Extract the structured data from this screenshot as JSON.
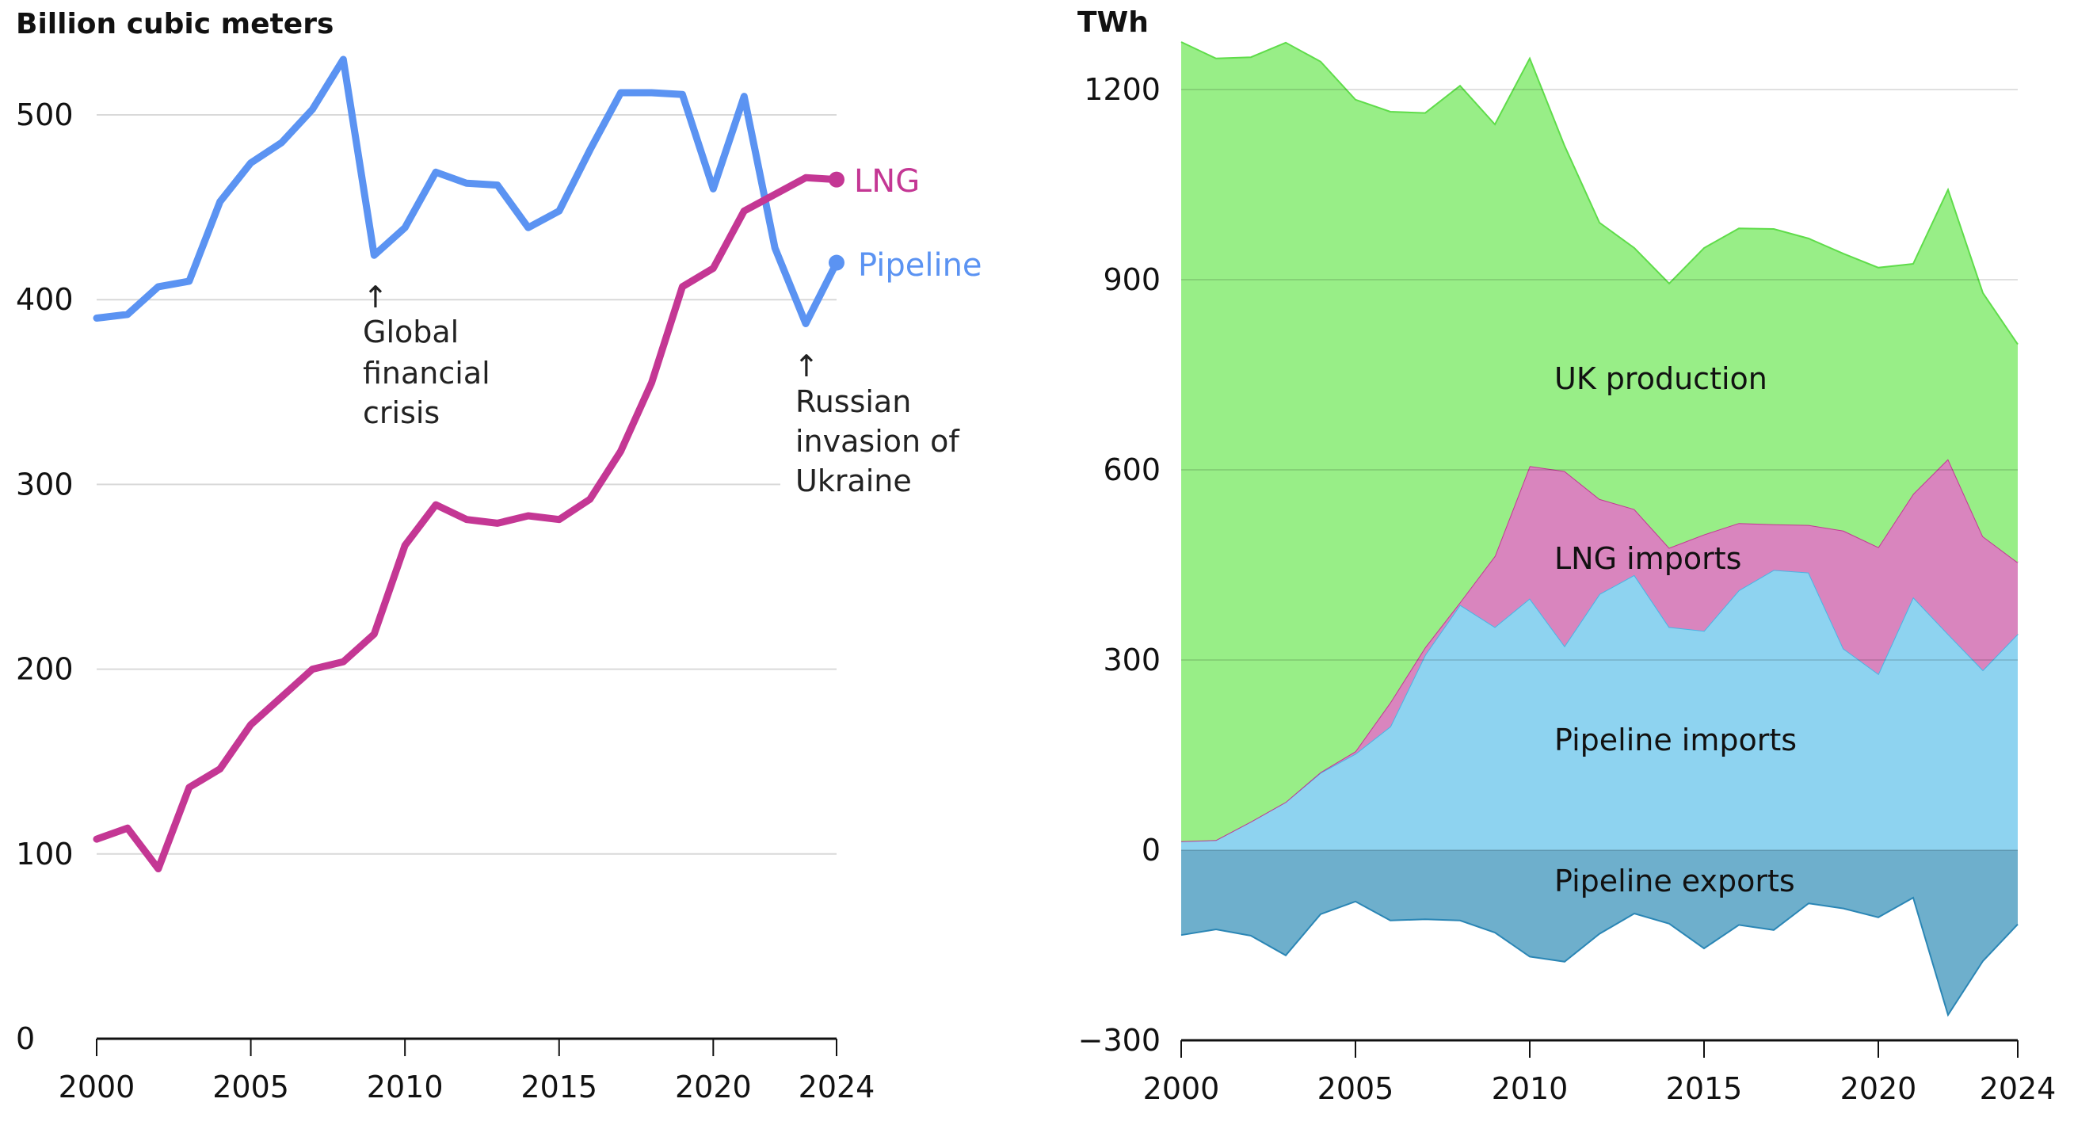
{
  "chart_data": [
    {
      "type": "line",
      "title": "Billion cubic meters",
      "xlabel": "",
      "ylabel": "Billion cubic meters",
      "xlim": [
        2000,
        2024
      ],
      "ylim": [
        0,
        530
      ],
      "grid": true,
      "x_ticks": [
        "2000",
        "2005",
        "2010",
        "2015",
        "2020",
        "2024"
      ],
      "y_ticks": [
        "0",
        "100",
        "200",
        "300",
        "400",
        "500"
      ],
      "x": [
        2000,
        2001,
        2002,
        2003,
        2004,
        2005,
        2006,
        2007,
        2008,
        2009,
        2010,
        2011,
        2012,
        2013,
        2014,
        2015,
        2016,
        2017,
        2018,
        2019,
        2020,
        2021,
        2022,
        2023,
        2024
      ],
      "series": [
        {
          "name": "LNG",
          "color": "#c43794",
          "values": [
            108,
            114,
            92,
            136,
            146,
            170,
            185,
            200,
            204,
            219,
            267,
            289,
            281,
            279,
            283,
            281,
            292,
            318,
            355,
            407,
            417,
            448,
            457,
            466,
            465
          ]
        },
        {
          "name": "Pipeline",
          "color": "#5b93f2",
          "values": [
            390,
            392,
            407,
            410,
            453,
            474,
            485,
            503,
            530,
            424,
            439,
            469,
            463,
            462,
            439,
            448,
            481,
            512,
            512,
            511,
            460,
            510,
            428,
            387,
            420
          ]
        }
      ],
      "annotations": [
        {
          "x": 2009,
          "text_lines": [
            "Global",
            "financial",
            "crisis"
          ]
        },
        {
          "x": 2023,
          "text_lines": [
            "Russian",
            "invasion of",
            "Ukraine"
          ]
        }
      ],
      "arrow_glyph": "↑"
    },
    {
      "type": "area",
      "stacked": true,
      "title": "TWh",
      "xlabel": "",
      "ylabel": "TWh",
      "xlim": [
        2000,
        2024
      ],
      "ylim": [
        -300,
        1280
      ],
      "grid": true,
      "x_ticks": [
        "2000",
        "2005",
        "2010",
        "2015",
        "2020",
        "2024"
      ],
      "y_ticks": [
        "−300",
        "0",
        "300",
        "600",
        "900",
        "1200"
      ],
      "y_tick_values": [
        -300,
        0,
        300,
        600,
        900,
        1200
      ],
      "x": [
        2000,
        2001,
        2002,
        2003,
        2004,
        2005,
        2006,
        2007,
        2008,
        2009,
        2010,
        2011,
        2012,
        2013,
        2014,
        2015,
        2016,
        2017,
        2018,
        2019,
        2020,
        2021,
        2022,
        2023,
        2024
      ],
      "series": [
        {
          "name": "Pipeline imports",
          "color": "#8ed3f0",
          "stroke": "#4ab4e4",
          "values": [
            14,
            16,
            45,
            76,
            122,
            152,
            195,
            308,
            387,
            352,
            397,
            322,
            404,
            434,
            352,
            346,
            410,
            442,
            438,
            318,
            278,
            399,
            341,
            284,
            341
          ]
        },
        {
          "name": "LNG imports",
          "color": "#d985be",
          "stroke": "#c43794",
          "values": [
            0,
            0,
            0,
            0,
            1,
            4,
            38,
            12,
            4,
            112,
            209,
            276,
            150,
            104,
            125,
            152,
            106,
            72,
            75,
            186,
            200,
            163,
            276,
            211,
            113
          ]
        },
        {
          "name": "UK production",
          "color": "#98ee87",
          "stroke": "#5fdc4a",
          "values": [
            1261,
            1233,
            1206,
            1198,
            1121,
            1028,
            932,
            843,
            815,
            681,
            643,
            513,
            436,
            412,
            417,
            452,
            465,
            466,
            452,
            437,
            441,
            363,
            425,
            384,
            344
          ]
        },
        {
          "name": "Pipeline exports",
          "color": "#6eafcc",
          "stroke": "#2b86b5",
          "values": [
            -134,
            -125,
            -135,
            -166,
            -101,
            -81,
            -111,
            -109,
            -111,
            -130,
            -168,
            -176,
            -132,
            -100,
            -116,
            -155,
            -118,
            -126,
            -84,
            -92,
            -106,
            -75,
            -260,
            -175,
            -117
          ]
        }
      ]
    }
  ]
}
